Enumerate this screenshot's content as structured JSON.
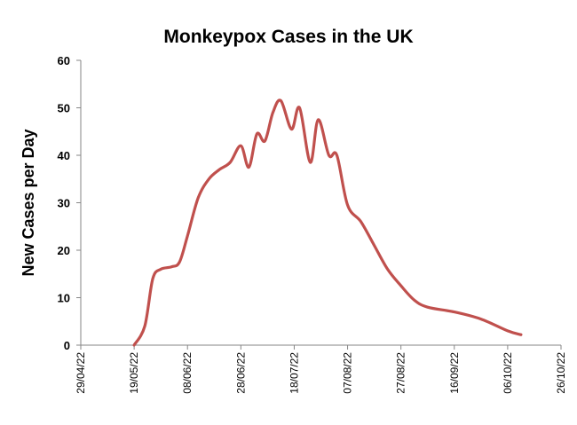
{
  "chart_data": {
    "type": "line",
    "title": "Monkeypox Cases in the UK",
    "xlabel": "",
    "ylabel": "New Cases per Day",
    "ylim": [
      0,
      60
    ],
    "xlim": [
      "2022-04-29",
      "2022-10-26"
    ],
    "y_ticks": [
      "0",
      "10",
      "20",
      "30",
      "40",
      "50",
      "60"
    ],
    "x_ticks": [
      {
        "date": "2022-04-29",
        "label": "29/04/22"
      },
      {
        "date": "2022-05-19",
        "label": "19/05/22"
      },
      {
        "date": "2022-06-08",
        "label": "08/06/22"
      },
      {
        "date": "2022-06-28",
        "label": "28/06/22"
      },
      {
        "date": "2022-07-18",
        "label": "18/07/22"
      },
      {
        "date": "2022-08-07",
        "label": "07/08/22"
      },
      {
        "date": "2022-08-27",
        "label": "27/08/22"
      },
      {
        "date": "2022-09-16",
        "label": "16/09/22"
      },
      {
        "date": "2022-10-06",
        "label": "06/10/22"
      },
      {
        "date": "2022-10-26",
        "label": "26/10/22"
      }
    ],
    "grid": false,
    "series": [
      {
        "color": "#c0504d",
        "points": [
          {
            "x": "2022-05-19",
            "y": 0
          },
          {
            "x": "2022-05-23",
            "y": 4
          },
          {
            "x": "2022-05-26",
            "y": 14
          },
          {
            "x": "2022-05-29",
            "y": 16
          },
          {
            "x": "2022-06-02",
            "y": 16.5
          },
          {
            "x": "2022-06-05",
            "y": 17.5
          },
          {
            "x": "2022-06-08",
            "y": 23
          },
          {
            "x": "2022-06-12",
            "y": 31
          },
          {
            "x": "2022-06-16",
            "y": 35
          },
          {
            "x": "2022-06-20",
            "y": 37
          },
          {
            "x": "2022-06-24",
            "y": 38.5
          },
          {
            "x": "2022-06-28",
            "y": 42
          },
          {
            "x": "2022-07-01",
            "y": 37.5
          },
          {
            "x": "2022-07-04",
            "y": 44.5
          },
          {
            "x": "2022-07-07",
            "y": 43
          },
          {
            "x": "2022-07-10",
            "y": 49
          },
          {
            "x": "2022-07-13",
            "y": 51.5
          },
          {
            "x": "2022-07-17",
            "y": 45.5
          },
          {
            "x": "2022-07-20",
            "y": 50
          },
          {
            "x": "2022-07-24",
            "y": 38.5
          },
          {
            "x": "2022-07-27",
            "y": 47.5
          },
          {
            "x": "2022-07-31",
            "y": 40
          },
          {
            "x": "2022-08-03",
            "y": 40
          },
          {
            "x": "2022-08-07",
            "y": 29.5
          },
          {
            "x": "2022-08-12",
            "y": 26
          },
          {
            "x": "2022-08-17",
            "y": 21
          },
          {
            "x": "2022-08-22",
            "y": 16
          },
          {
            "x": "2022-08-27",
            "y": 12.5
          },
          {
            "x": "2022-09-01",
            "y": 9.5
          },
          {
            "x": "2022-09-06",
            "y": 8
          },
          {
            "x": "2022-09-16",
            "y": 7
          },
          {
            "x": "2022-09-26",
            "y": 5.5
          },
          {
            "x": "2022-10-06",
            "y": 3
          },
          {
            "x": "2022-10-11",
            "y": 2.2
          }
        ]
      }
    ]
  }
}
